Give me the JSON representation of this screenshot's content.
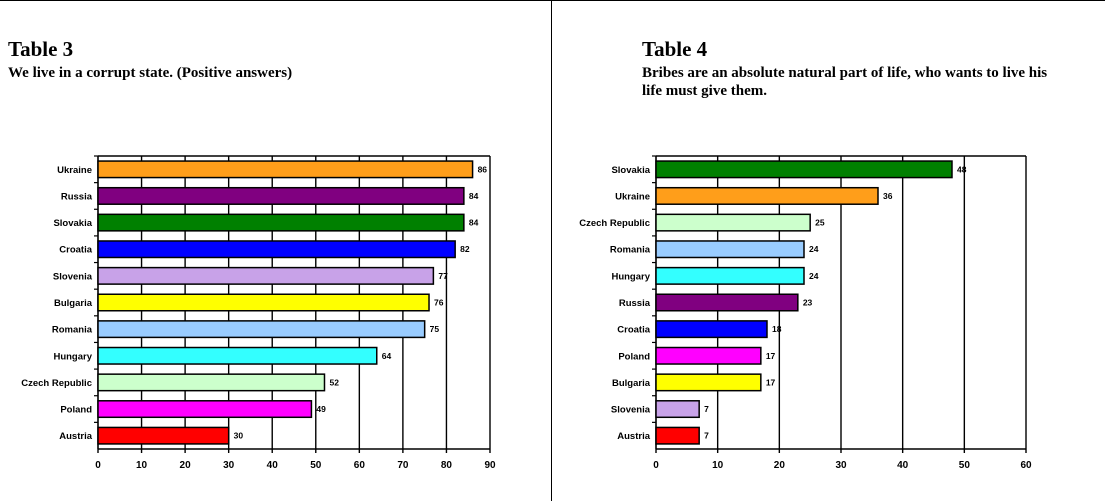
{
  "panels": [
    {
      "title": "Table 3",
      "subtitle": "We live in a corrupt state. (Positive answers)"
    },
    {
      "title": "Table 4",
      "subtitle": "Bribes are an absolute natural part of life, who wants to live his life must give them."
    }
  ],
  "chart_data": [
    {
      "type": "bar",
      "orientation": "horizontal",
      "title": "Table 3",
      "subtitle": "We live in a corrupt state. (Positive answers)",
      "categories": [
        "Ukraine",
        "Russia",
        "Slovakia",
        "Croatia",
        "Slovenia",
        "Bulgaria",
        "Romania",
        "Hungary",
        "Czech Republic",
        "Poland",
        "Austria"
      ],
      "values": [
        86,
        84,
        84,
        82,
        77,
        76,
        75,
        64,
        52,
        49,
        30
      ],
      "colors": [
        "#ff9e1a",
        "#800080",
        "#008000",
        "#0000ff",
        "#c8a2e8",
        "#ffff00",
        "#99ccff",
        "#33ffff",
        "#ccffcc",
        "#ff00ff",
        "#ff0000"
      ],
      "xlim": [
        0,
        90
      ],
      "xticks": [
        0,
        10,
        20,
        30,
        40,
        50,
        60,
        70,
        80,
        90
      ],
      "grid": "vertical"
    },
    {
      "type": "bar",
      "orientation": "horizontal",
      "title": "Table 4",
      "subtitle": "Bribes are an absolute natural part of life, who wants to live his life must give them.",
      "categories": [
        "Slovakia",
        "Ukraine",
        "Czech Republic",
        "Romania",
        "Hungary",
        "Russia",
        "Croatia",
        "Poland",
        "Bulgaria",
        "Slovenia",
        "Austria"
      ],
      "values": [
        48,
        36,
        25,
        24,
        24,
        23,
        18,
        17,
        17,
        7,
        7
      ],
      "colors": [
        "#008000",
        "#ff9e1a",
        "#ccffcc",
        "#99ccff",
        "#33ffff",
        "#800080",
        "#0000ff",
        "#ff00ff",
        "#ffff00",
        "#c8a2e8",
        "#ff0000"
      ],
      "xlim": [
        0,
        60
      ],
      "xticks": [
        0,
        10,
        20,
        30,
        40,
        50,
        60
      ],
      "grid": "vertical"
    }
  ]
}
